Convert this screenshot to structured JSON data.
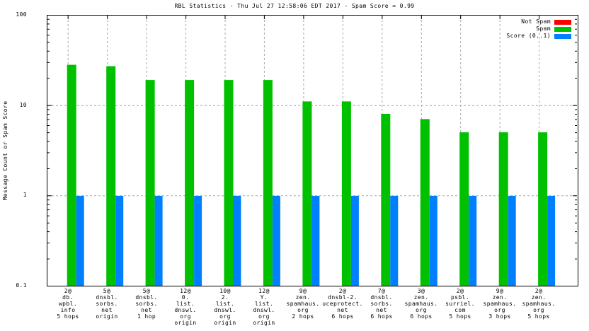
{
  "title": "RBL Statistics - Thu Jul 27 12:58:06 EDT 2017 - Spam Score = 0.99",
  "chart_data": {
    "type": "bar",
    "title": "RBL Statistics - Thu Jul 27 12:58:06 EDT 2017 - Spam Score = 0.99",
    "xlabel": "",
    "ylabel": "Message Count or Spam Score",
    "y_scale": "log",
    "ylim": [
      0.1,
      100
    ],
    "grid": true,
    "legend_position": "top-right",
    "y_ticks": [
      {
        "value": 100,
        "label": "100"
      },
      {
        "value": 10,
        "label": "10"
      },
      {
        "value": 1,
        "label": "1"
      },
      {
        "value": 0.1,
        "label": "0.1"
      }
    ],
    "grid_y_values": [
      1,
      10
    ],
    "categories": [
      [
        "2@",
        "db.",
        "wpbl.",
        "info",
        "5 hops"
      ],
      [
        "5@",
        "dnsbl.",
        "sorbs.",
        "net",
        "origin"
      ],
      [
        "5@",
        "dnsbl.",
        "sorbs.",
        "net",
        "1 hop"
      ],
      [
        "12@",
        "0.",
        "list.",
        "dnswl.",
        "org",
        "origin"
      ],
      [
        "10@",
        "2.",
        "list.",
        "dnswl.",
        "org",
        "origin"
      ],
      [
        "12@",
        "Y.",
        "list.",
        "dnswl.",
        "org",
        "origin"
      ],
      [
        "9@",
        "zen.",
        "spamhaus.",
        "org",
        "2 hops"
      ],
      [
        "2@",
        "dnsbl-2.",
        "uceprotect.",
        "net",
        "6 hops"
      ],
      [
        "7@",
        "dnsbl.",
        "sorbs.",
        "net",
        "6 hops"
      ],
      [
        "3@",
        "zen.",
        "spamhaus.",
        "org",
        "6 hops"
      ],
      [
        "2@",
        "psbl.",
        "surriel.",
        "com",
        "5 hops"
      ],
      [
        "9@",
        "zen.",
        "spamhaus.",
        "org",
        "3 hops"
      ],
      [
        "2@",
        "zen.",
        "spamhaus.",
        "org",
        "5 hops"
      ]
    ],
    "series": [
      {
        "name": "Not Spam",
        "color": "#ff0000",
        "values": [
          0,
          0,
          0,
          0,
          0,
          0,
          0,
          0,
          0,
          0,
          0,
          0,
          0
        ]
      },
      {
        "name": "Spam",
        "color": "#00c000",
        "values": [
          28,
          27,
          19,
          19,
          19,
          19,
          11,
          11,
          8,
          7,
          5,
          5,
          5
        ]
      },
      {
        "name": "Score (0..1)",
        "color": "#0080ff",
        "values": [
          0.99,
          0.99,
          0.99,
          0.99,
          0.99,
          0.99,
          0.99,
          0.99,
          0.99,
          0.99,
          0.99,
          0.99,
          0.99
        ]
      }
    ],
    "legend": [
      {
        "label": "Not Spam",
        "color": "#ff0000"
      },
      {
        "label": "Spam",
        "color": "#00c000"
      },
      {
        "label": "Score (0..1)",
        "color": "#0080ff"
      }
    ],
    "colors": {
      "grid": "#a8a8a8",
      "axis": "#000000",
      "background": "#ffffff"
    }
  }
}
